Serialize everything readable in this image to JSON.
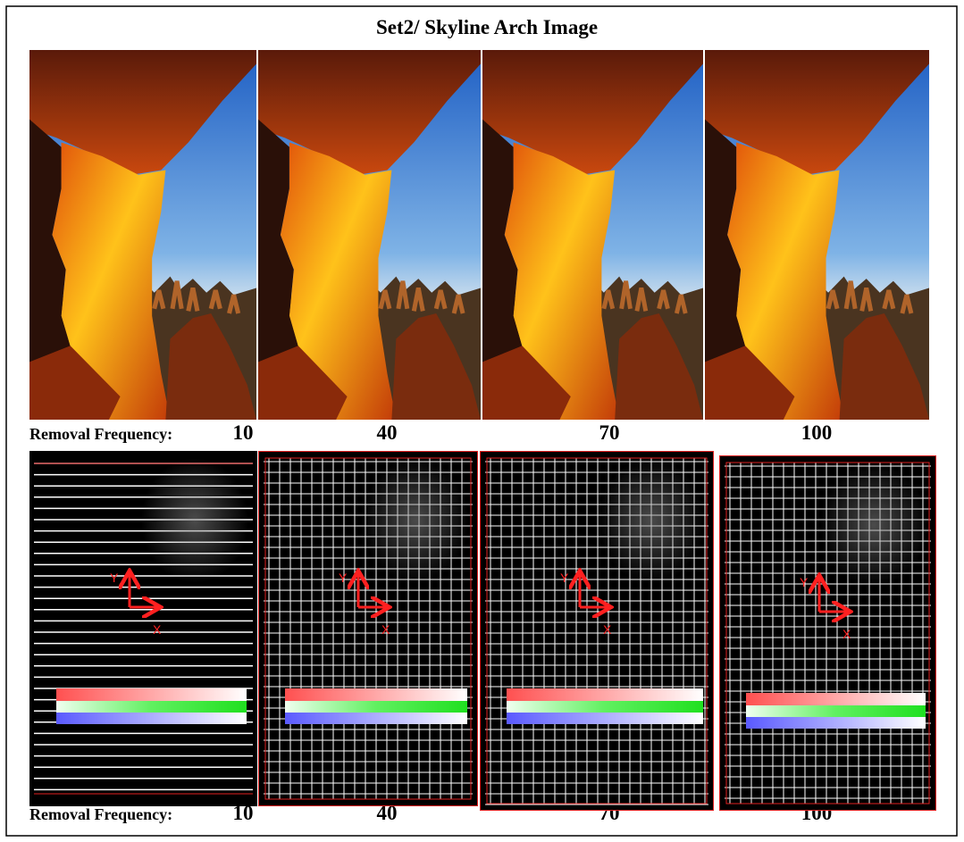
{
  "title": "Set2/ Skyline Arch Image",
  "rows": [
    {
      "label": "Removal Frequency:",
      "frequencies": [
        10,
        40,
        70,
        100
      ]
    },
    {
      "label": "Removal Frequency:",
      "frequencies": [
        10,
        40,
        70,
        100
      ]
    }
  ],
  "grid_panels": [
    {
      "y_label": "Y",
      "x_label": "X"
    },
    {
      "y_label": "Y",
      "x_label": "X"
    },
    {
      "y_label": "Y",
      "x_label": "X"
    },
    {
      "y_label": "Y",
      "x_label": "X"
    }
  ]
}
